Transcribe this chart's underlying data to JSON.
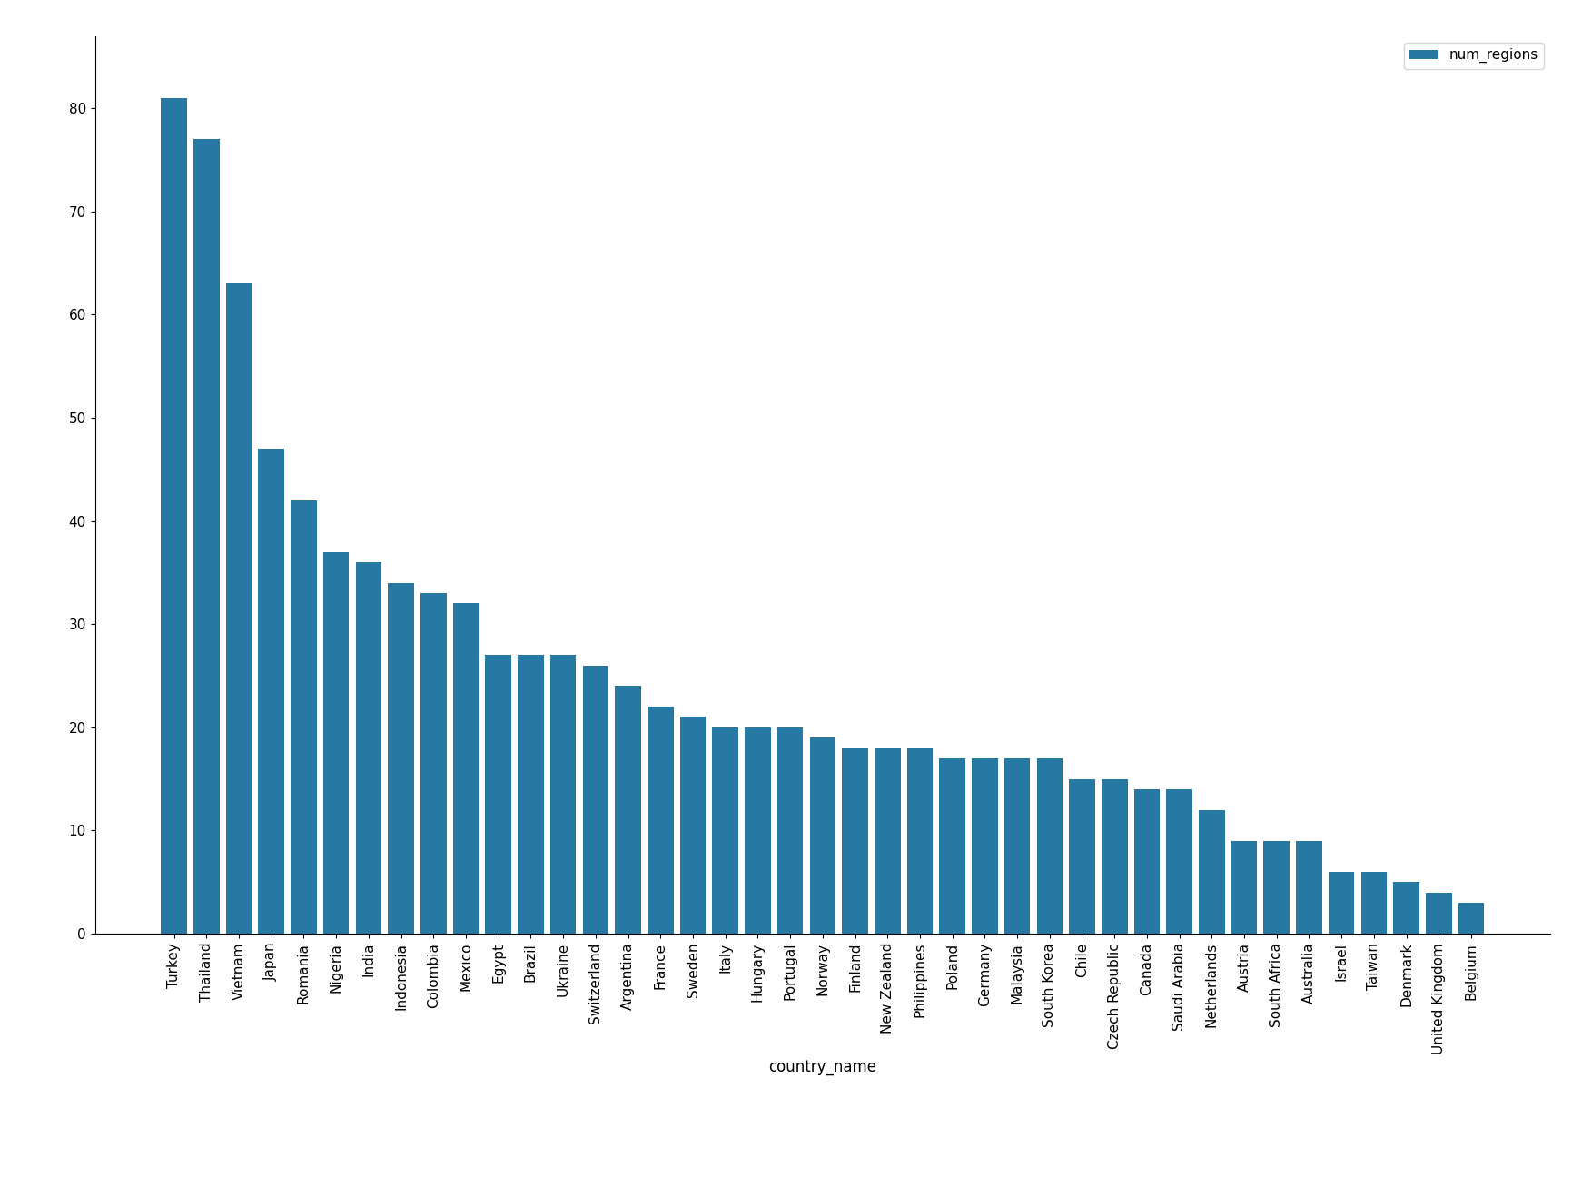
{
  "categories": [
    "Turkey",
    "Thailand",
    "Vietnam",
    "Japan",
    "Romania",
    "Nigeria",
    "India",
    "Indonesia",
    "Colombia",
    "Mexico",
    "Egypt",
    "Brazil",
    "Ukraine",
    "Switzerland",
    "Argentina",
    "France",
    "Sweden",
    "Italy",
    "Hungary",
    "Portugal",
    "Norway",
    "Finland",
    "New Zealand",
    "Philippines",
    "Poland",
    "Germany",
    "Malaysia",
    "South Korea",
    "Chile",
    "Czech Republic",
    "Canada",
    "Saudi Arabia",
    "Netherlands",
    "Austria",
    "South Africa",
    "Australia",
    "Israel",
    "Taiwan",
    "Denmark",
    "United Kingdom",
    "Belgium"
  ],
  "values": [
    81,
    77,
    63,
    47,
    42,
    37,
    36,
    34,
    33,
    32,
    27,
    27,
    27,
    26,
    24,
    22,
    21,
    20,
    20,
    20,
    19,
    18,
    18,
    18,
    17,
    17,
    17,
    17,
    15,
    15,
    14,
    14,
    12,
    9,
    9,
    9,
    6,
    6,
    5,
    4,
    3
  ],
  "bar_color": "#2878a4",
  "xlabel": "country_name",
  "ylabel": "",
  "legend_label": "num_regions",
  "background_color": "#ffffff",
  "yticks": [
    0,
    10,
    20,
    30,
    40,
    50,
    60,
    70,
    80
  ],
  "ylim": [
    0,
    87
  ],
  "figsize": [
    17.42,
    13.18
  ],
  "dpi": 100
}
